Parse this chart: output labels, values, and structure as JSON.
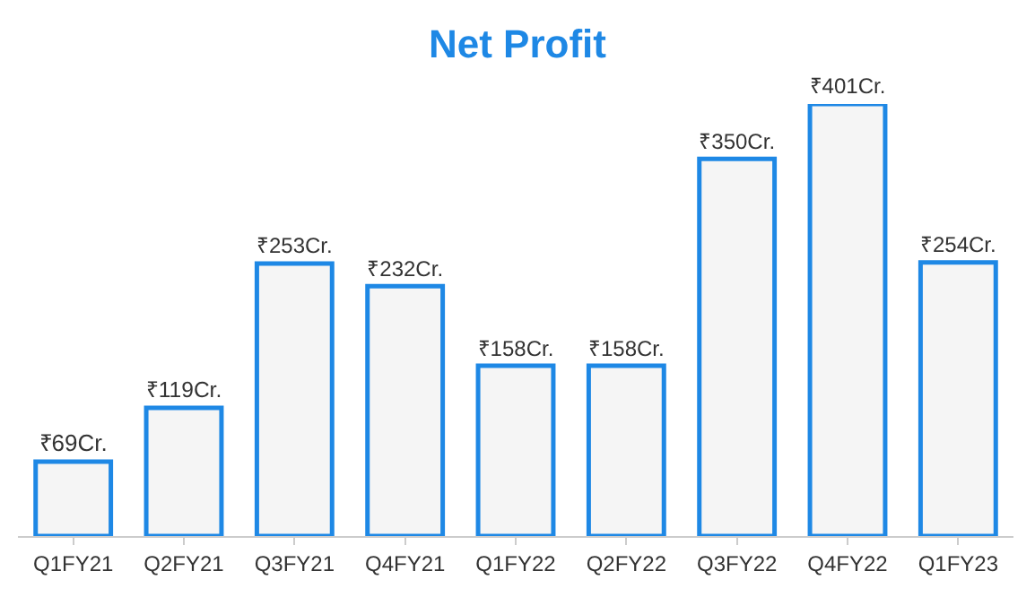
{
  "chart_data": {
    "type": "bar",
    "title": "Net Profit",
    "categories": [
      "Q1FY21",
      "Q2FY21",
      "Q3FY21",
      "Q4FY21",
      "Q1FY22",
      "Q2FY22",
      "Q3FY22",
      "Q4FY22",
      "Q1FY23"
    ],
    "values": [
      69,
      119,
      253,
      232,
      158,
      158,
      350,
      401,
      254
    ],
    "value_labels": [
      "₹69Cr.",
      "₹119Cr.",
      "₹253Cr.",
      "₹232Cr.",
      "₹158Cr.",
      "₹158Cr.",
      "₹350Cr.",
      "₹401Cr.",
      "₹254Cr."
    ],
    "color": "#1e88e5",
    "legend": false
  }
}
